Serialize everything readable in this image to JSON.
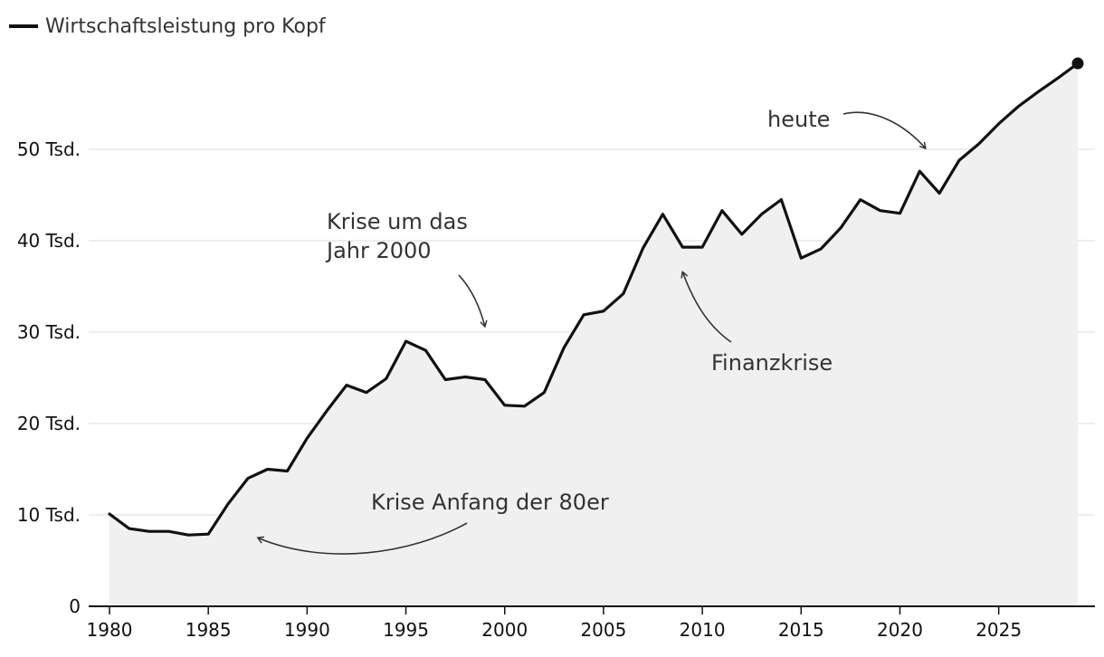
{
  "chart_data": {
    "type": "area",
    "title": "",
    "legend": {
      "entries": [
        "Wirtschaftsleistung pro Kopf"
      ],
      "position": "top-left"
    },
    "xlabel": "",
    "ylabel": "",
    "xlim": [
      1980,
      2029
    ],
    "ylim": [
      0,
      59
    ],
    "grid": true,
    "x_ticks": [
      {
        "value": 1980,
        "label": "1980"
      },
      {
        "value": 1985,
        "label": "1985"
      },
      {
        "value": 1990,
        "label": "1990"
      },
      {
        "value": 1995,
        "label": "1995"
      },
      {
        "value": 2000,
        "label": "2000"
      },
      {
        "value": 2005,
        "label": "2005"
      },
      {
        "value": 2010,
        "label": "2010"
      },
      {
        "value": 2015,
        "label": "2015"
      },
      {
        "value": 2020,
        "label": "2020"
      },
      {
        "value": 2025,
        "label": "2025"
      }
    ],
    "y_ticks": [
      {
        "value": 0,
        "label": "0"
      },
      {
        "value": 10,
        "label": "10 Tsd."
      },
      {
        "value": 20,
        "label": "20 Tsd."
      },
      {
        "value": 30,
        "label": "30 Tsd."
      },
      {
        "value": 40,
        "label": "40 Tsd."
      },
      {
        "value": 50,
        "label": "50 Tsd."
      }
    ],
    "series": [
      {
        "name": "Wirtschaftsleistung pro Kopf",
        "unit": "Tsd.",
        "x": [
          1980,
          1981,
          1982,
          1983,
          1984,
          1985,
          1986,
          1987,
          1988,
          1989,
          1990,
          1991,
          1992,
          1993,
          1994,
          1995,
          1996,
          1997,
          1998,
          1999,
          2000,
          2001,
          2002,
          2003,
          2004,
          2005,
          2006,
          2007,
          2008,
          2009,
          2010,
          2011,
          2012,
          2013,
          2014,
          2015,
          2016,
          2017,
          2018,
          2019,
          2020,
          2021,
          2022,
          2023,
          2024,
          2025,
          2026,
          2027,
          2028,
          2029
        ],
        "values": [
          10.1,
          8.5,
          8.2,
          8.2,
          7.8,
          7.9,
          11.2,
          14.0,
          15.0,
          14.8,
          18.4,
          21.4,
          24.2,
          23.4,
          24.9,
          29.0,
          28.0,
          24.8,
          25.1,
          24.8,
          22.0,
          21.9,
          23.4,
          28.3,
          31.9,
          32.3,
          34.2,
          39.2,
          42.9,
          39.3,
          39.3,
          43.3,
          40.7,
          42.9,
          44.5,
          38.1,
          39.1,
          41.4,
          44.5,
          43.3,
          43.0,
          47.6,
          45.2,
          48.8,
          50.6,
          52.8,
          54.7,
          56.3,
          57.8,
          59.4
        ],
        "end_marker": true
      }
    ],
    "annotations": [
      {
        "text_lines": [
          "heute"
        ],
        "target_x": 2021.3,
        "target_y": 50.1
      },
      {
        "text_lines": [
          "Krise um das",
          "Jahr 2000"
        ],
        "target_x": 1999.0,
        "target_y": 30.6
      },
      {
        "text_lines": [
          "Finanzkrise"
        ],
        "target_x": 2009.0,
        "target_y": 36.6
      },
      {
        "text_lines": [
          "Krise Anfang der 80er"
        ],
        "target_x": 1987.5,
        "target_y": 7.5
      }
    ]
  },
  "colors": {
    "line": "#111111",
    "area": "#f0f0f0",
    "grid": "#dddddd",
    "axis": "#111111",
    "annotation_text": "#333333",
    "annotation_arrow": "#333333"
  }
}
